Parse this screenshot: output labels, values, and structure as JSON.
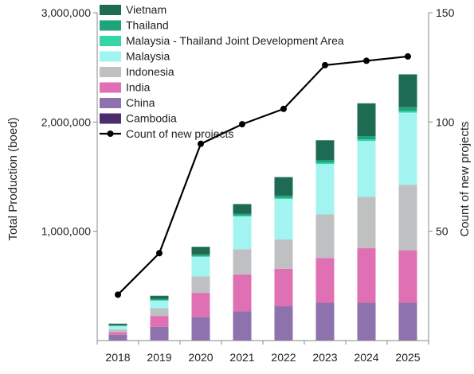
{
  "chart_data": {
    "type": "bar",
    "stacked": true,
    "categories": [
      "2018",
      "2019",
      "2020",
      "2021",
      "2022",
      "2023",
      "2024",
      "2025"
    ],
    "series": [
      {
        "name": "Cambodia",
        "color": "#4b2e6b",
        "values": [
          3000,
          5000,
          6000,
          6000,
          6000,
          6000,
          6000,
          6000
        ]
      },
      {
        "name": "China",
        "color": "#8e72ad",
        "values": [
          50000,
          120000,
          210000,
          260000,
          310000,
          340000,
          340000,
          340000
        ]
      },
      {
        "name": "India",
        "color": "#e070b4",
        "values": [
          25000,
          100000,
          220000,
          340000,
          340000,
          410000,
          500000,
          480000
        ]
      },
      {
        "name": "Indonesia",
        "color": "#bfc0c2",
        "values": [
          25000,
          70000,
          150000,
          230000,
          270000,
          400000,
          470000,
          600000
        ]
      },
      {
        "name": "Malaysia",
        "color": "#a2f4f1",
        "values": [
          30000,
          70000,
          180000,
          300000,
          370000,
          460000,
          510000,
          660000
        ]
      },
      {
        "name": "Malaysia - Thailand Joint Development Area",
        "color": "#34d6a8",
        "values": [
          2000,
          5000,
          7000,
          8000,
          10000,
          12000,
          15000,
          15000
        ]
      },
      {
        "name": "Thailand",
        "color": "#1fa37a",
        "values": [
          5000,
          10000,
          15000,
          15000,
          20000,
          25000,
          30000,
          35000
        ]
      },
      {
        "name": "Vietnam",
        "color": "#1d6b52",
        "values": [
          15000,
          30000,
          70000,
          90000,
          170000,
          180000,
          300000,
          300000
        ]
      }
    ],
    "line": {
      "name": "Count of new projects",
      "color": "#000000",
      "values": [
        21,
        40,
        90,
        99,
        106,
        126,
        128,
        130
      ]
    },
    "ylabel": "Total Production (boed)",
    "y2label": "Count of new projects",
    "ylim": [
      0,
      3000000
    ],
    "y2lim": [
      0,
      150
    ],
    "yticks": [
      "1,000,000",
      "2,000,000",
      "3,000,000"
    ],
    "ytick_values": [
      1000000,
      2000000,
      3000000
    ],
    "y2ticks": [
      "50",
      "100",
      "150"
    ],
    "y2tick_values": [
      50,
      100,
      150
    ],
    "legend_position": "top-left",
    "grid": false
  }
}
